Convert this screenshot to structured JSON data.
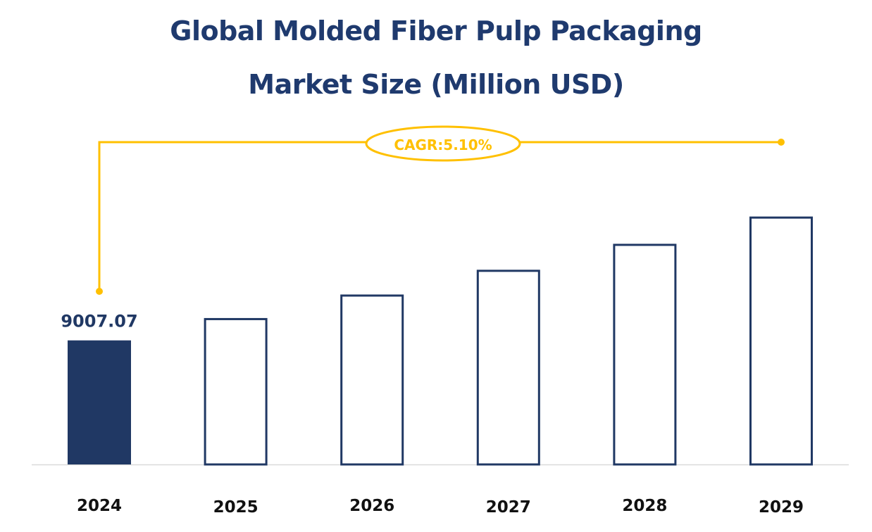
{
  "chart_data": {
    "type": "bar",
    "title_lines": [
      "Global Molded Fiber Pulp Packaging",
      "Market Size (Million USD)"
    ],
    "categories": [
      "2024",
      "2025",
      "2026",
      "2027",
      "2028",
      "2029"
    ],
    "values": [
      9007.07,
      9466,
      9949,
      10457,
      10990,
      11550
    ],
    "data_labels": [
      "9007.07",
      "",
      "",
      "",
      "",
      ""
    ],
    "annotation": "CAGR:5.10%",
    "ylim": [
      6460,
      11950
    ],
    "grid": false,
    "legend": "none",
    "colors": {
      "bar": "#203864",
      "highlight_fill": "#203864",
      "other_fill": "#ffffff",
      "annotation": "#ffc000",
      "axis": "#d9d9d9"
    }
  }
}
